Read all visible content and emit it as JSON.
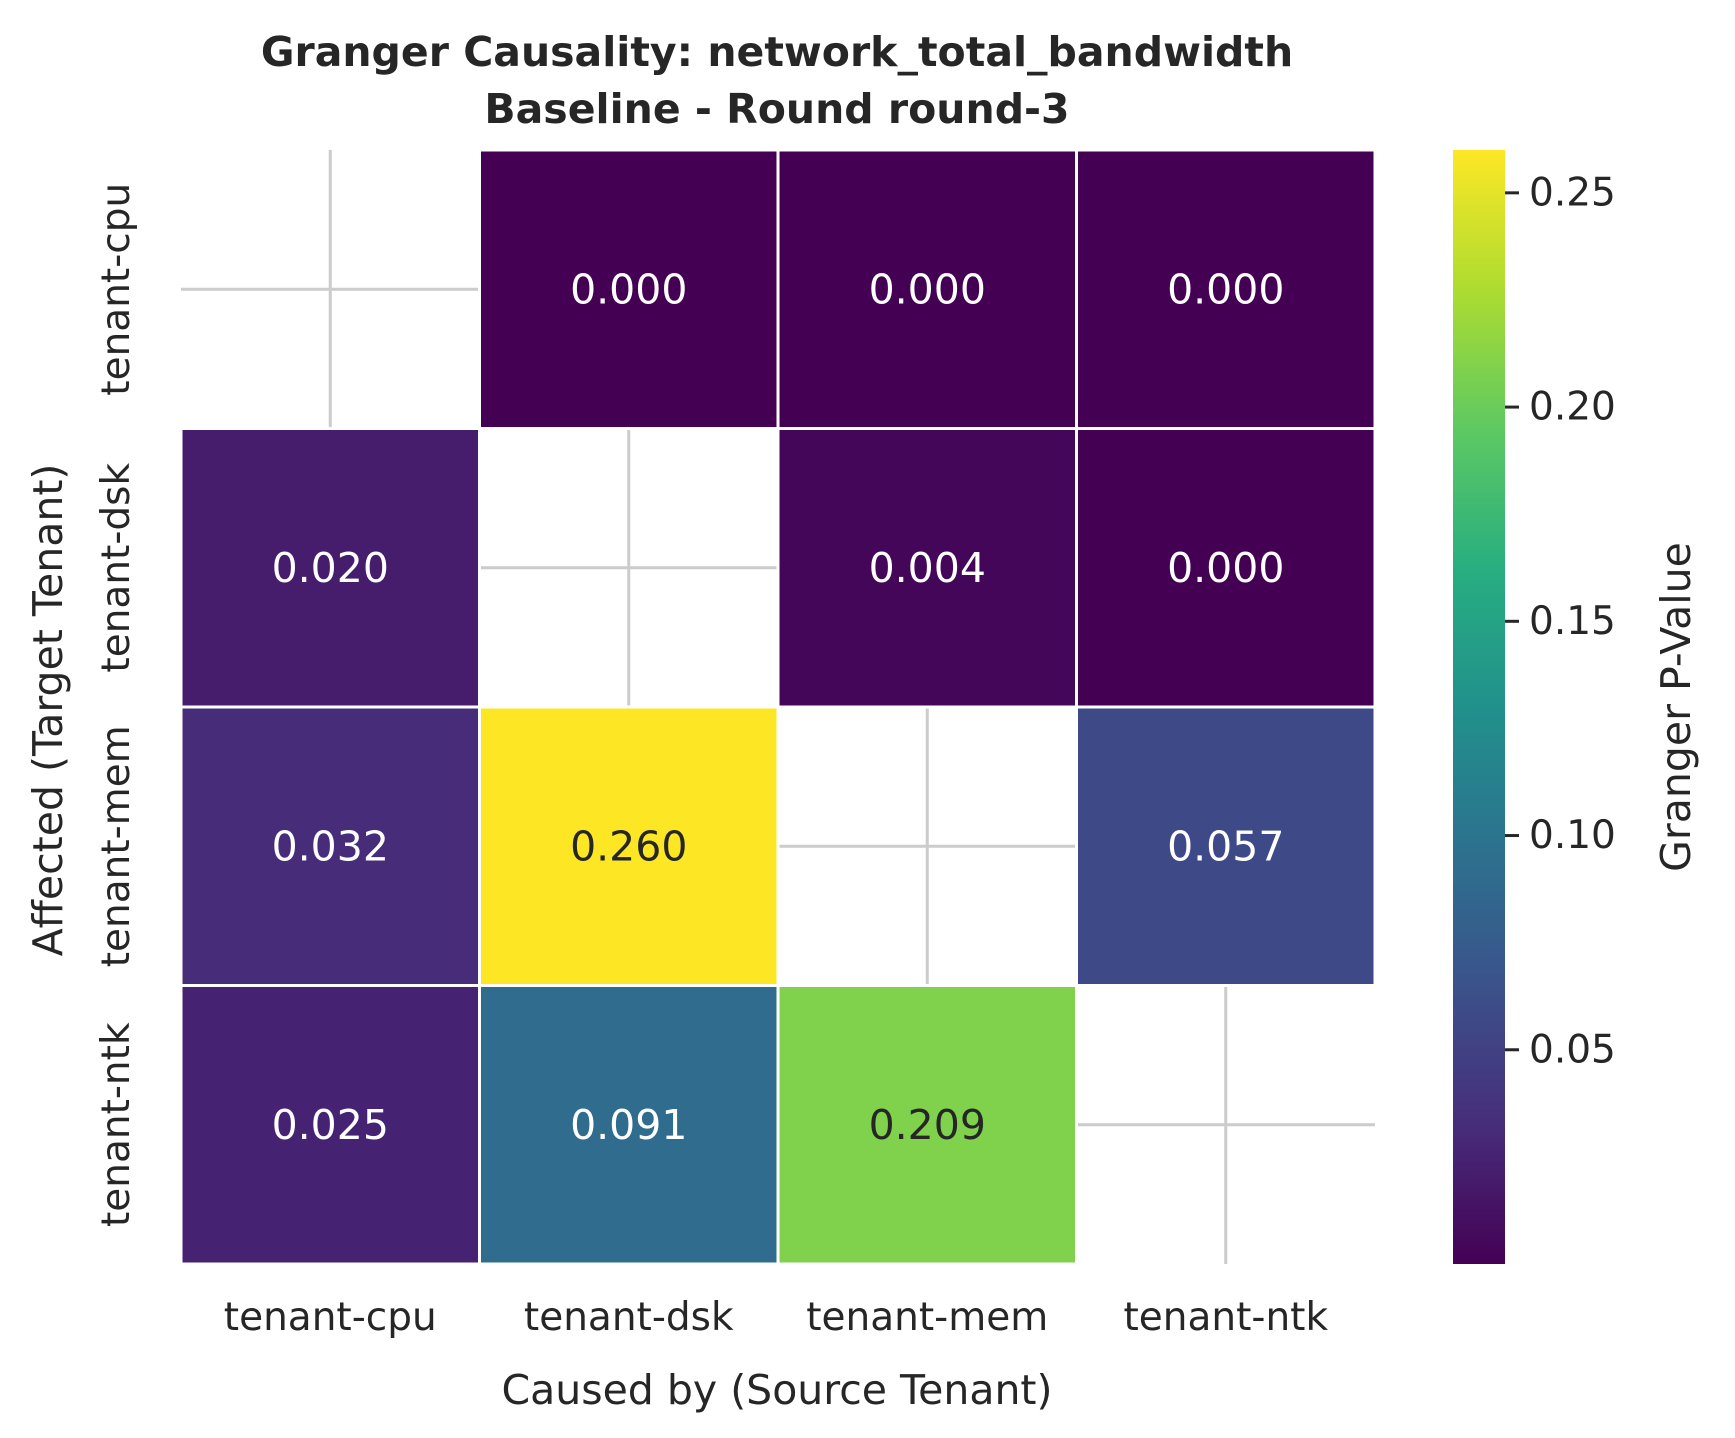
{
  "chart_data": {
    "type": "heatmap",
    "title": "Granger Causality: network_total_bandwidth",
    "subtitle": "Baseline - Round round-3",
    "xlabel": "Caused by (Source Tenant)",
    "ylabel": "Affected (Target Tenant)",
    "x_categories": [
      "tenant-cpu",
      "tenant-dsk",
      "tenant-mem",
      "tenant-ntk"
    ],
    "y_categories": [
      "tenant-cpu",
      "tenant-dsk",
      "tenant-mem",
      "tenant-ntk"
    ],
    "values": [
      [
        null,
        0.0,
        0.0,
        0.0
      ],
      [
        0.02,
        null,
        0.004,
        0.0
      ],
      [
        0.032,
        0.26,
        null,
        0.057
      ],
      [
        0.025,
        0.091,
        0.209,
        null
      ]
    ],
    "value_labels": [
      [
        "",
        "0.000",
        "0.000",
        "0.000"
      ],
      [
        "0.020",
        "",
        "0.004",
        "0.000"
      ],
      [
        "0.032",
        "0.260",
        "",
        "0.057"
      ],
      [
        "0.025",
        "0.091",
        "0.209",
        ""
      ]
    ],
    "colormap": "viridis",
    "colorbar": {
      "label": "Granger P-Value",
      "range": [
        0.0,
        0.26
      ],
      "ticks": [
        0.05,
        0.1,
        0.15,
        0.2,
        0.25
      ],
      "tick_labels": [
        "0.05",
        "0.10",
        "0.15",
        "0.20",
        "0.25"
      ]
    },
    "grid": true,
    "diagonal_masked": true
  }
}
